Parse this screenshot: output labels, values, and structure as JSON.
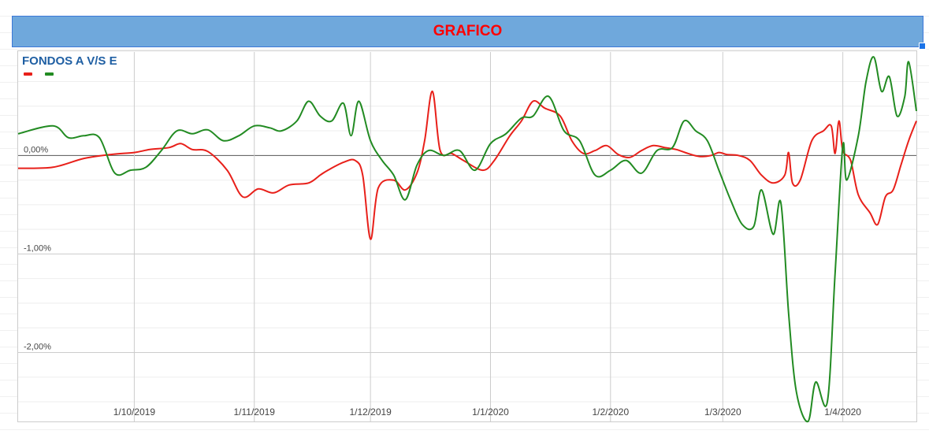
{
  "header": {
    "title": "GRAFICO"
  },
  "chart_data": {
    "type": "line",
    "title": "FONDOS A V/S E",
    "ylim": [
      -2.7,
      1.05
    ],
    "y_ticks": [
      0,
      -1,
      -2
    ],
    "y_tick_labels": [
      "0,00%",
      "-1,00%",
      "-2,00%"
    ],
    "x_range": [
      "2019-09-01",
      "2020-04-20"
    ],
    "x_ticks": [
      "2019-10-01",
      "2019-11-01",
      "2019-12-01",
      "2020-01-01",
      "2020-02-01",
      "2020-03-01",
      "2020-04-01"
    ],
    "x_tick_labels": [
      "1/10/2019",
      "1/11/2019",
      "1/12/2019",
      "1/1/2020",
      "1/2/2020",
      "1/3/2020",
      "1/4/2020"
    ],
    "grid": true,
    "legend_position": "top-left",
    "series": [
      {
        "color": "#e8201a",
        "points": [
          [
            "2019-09-01",
            -0.13
          ],
          [
            "2019-09-10",
            -0.12
          ],
          [
            "2019-09-18",
            -0.03
          ],
          [
            "2019-09-25",
            0.01
          ],
          [
            "2019-10-01",
            0.03
          ],
          [
            "2019-10-05",
            0.06
          ],
          [
            "2019-10-10",
            0.08
          ],
          [
            "2019-10-13",
            0.12
          ],
          [
            "2019-10-16",
            0.06
          ],
          [
            "2019-10-20",
            0.04
          ],
          [
            "2019-10-25",
            -0.15
          ],
          [
            "2019-10-29",
            -0.42
          ],
          [
            "2019-11-02",
            -0.34
          ],
          [
            "2019-11-06",
            -0.38
          ],
          [
            "2019-11-10",
            -0.3
          ],
          [
            "2019-11-15",
            -0.28
          ],
          [
            "2019-11-18",
            -0.2
          ],
          [
            "2019-11-20",
            -0.15
          ],
          [
            "2019-11-24",
            -0.07
          ],
          [
            "2019-11-27",
            -0.05
          ],
          [
            "2019-11-29",
            -0.2
          ],
          [
            "2019-12-01",
            -0.85
          ],
          [
            "2019-12-03",
            -0.33
          ],
          [
            "2019-12-07",
            -0.25
          ],
          [
            "2019-12-10",
            -0.35
          ],
          [
            "2019-12-13",
            -0.18
          ],
          [
            "2019-12-15",
            0.15
          ],
          [
            "2019-12-17",
            0.65
          ],
          [
            "2019-12-19",
            0.05
          ],
          [
            "2019-12-22",
            0.02
          ],
          [
            "2019-12-25",
            -0.05
          ],
          [
            "2019-12-30",
            -0.15
          ],
          [
            "2020-01-02",
            -0.05
          ],
          [
            "2020-01-06",
            0.2
          ],
          [
            "2020-01-09",
            0.35
          ],
          [
            "2020-01-12",
            0.55
          ],
          [
            "2020-01-15",
            0.48
          ],
          [
            "2020-01-19",
            0.4
          ],
          [
            "2020-01-22",
            0.15
          ],
          [
            "2020-01-25",
            0.02
          ],
          [
            "2020-01-28",
            0.05
          ],
          [
            "2020-01-31",
            0.1
          ],
          [
            "2020-02-03",
            0.01
          ],
          [
            "2020-02-06",
            -0.02
          ],
          [
            "2020-02-09",
            0.05
          ],
          [
            "2020-02-12",
            0.1
          ],
          [
            "2020-02-15",
            0.08
          ],
          [
            "2020-02-18",
            0.06
          ],
          [
            "2020-02-21",
            0.02
          ],
          [
            "2020-02-24",
            -0.01
          ],
          [
            "2020-02-27",
            0.0
          ],
          [
            "2020-02-29",
            0.03
          ],
          [
            "2020-03-02",
            0.01
          ],
          [
            "2020-03-05",
            0.0
          ],
          [
            "2020-03-08",
            -0.05
          ],
          [
            "2020-03-11",
            -0.2
          ],
          [
            "2020-03-14",
            -0.28
          ],
          [
            "2020-03-17",
            -0.2
          ],
          [
            "2020-03-18",
            0.03
          ],
          [
            "2020-03-19",
            -0.28
          ],
          [
            "2020-03-21",
            -0.25
          ],
          [
            "2020-03-24",
            0.15
          ],
          [
            "2020-03-27",
            0.25
          ],
          [
            "2020-03-29",
            0.3
          ],
          [
            "2020-03-30",
            0.02
          ],
          [
            "2020-03-31",
            0.35
          ],
          [
            "2020-04-01",
            0.05
          ],
          [
            "2020-04-03",
            -0.05
          ],
          [
            "2020-04-05",
            -0.4
          ],
          [
            "2020-04-08",
            -0.58
          ],
          [
            "2020-04-10",
            -0.7
          ],
          [
            "2020-04-12",
            -0.42
          ],
          [
            "2020-04-14",
            -0.35
          ],
          [
            "2020-04-16",
            -0.1
          ],
          [
            "2020-04-18",
            0.15
          ],
          [
            "2020-04-20",
            0.35
          ]
        ]
      },
      {
        "color": "#228b22",
        "points": [
          [
            "2019-09-01",
            0.22
          ],
          [
            "2019-09-10",
            0.3
          ],
          [
            "2019-09-14",
            0.18
          ],
          [
            "2019-09-18",
            0.2
          ],
          [
            "2019-09-22",
            0.18
          ],
          [
            "2019-09-26",
            -0.18
          ],
          [
            "2019-09-30",
            -0.15
          ],
          [
            "2019-10-04",
            -0.12
          ],
          [
            "2019-10-08",
            0.05
          ],
          [
            "2019-10-12",
            0.25
          ],
          [
            "2019-10-16",
            0.22
          ],
          [
            "2019-10-20",
            0.26
          ],
          [
            "2019-10-24",
            0.15
          ],
          [
            "2019-10-28",
            0.2
          ],
          [
            "2019-11-01",
            0.3
          ],
          [
            "2019-11-05",
            0.28
          ],
          [
            "2019-11-08",
            0.25
          ],
          [
            "2019-11-12",
            0.35
          ],
          [
            "2019-11-15",
            0.55
          ],
          [
            "2019-11-18",
            0.4
          ],
          [
            "2019-11-21",
            0.35
          ],
          [
            "2019-11-24",
            0.53
          ],
          [
            "2019-11-26",
            0.2
          ],
          [
            "2019-11-28",
            0.55
          ],
          [
            "2019-12-01",
            0.15
          ],
          [
            "2019-12-04",
            -0.05
          ],
          [
            "2019-12-07",
            -0.2
          ],
          [
            "2019-12-10",
            -0.45
          ],
          [
            "2019-12-13",
            -0.1
          ],
          [
            "2019-12-16",
            0.05
          ],
          [
            "2019-12-20",
            0.0
          ],
          [
            "2019-12-24",
            0.05
          ],
          [
            "2019-12-28",
            -0.15
          ],
          [
            "2020-01-01",
            0.12
          ],
          [
            "2020-01-05",
            0.22
          ],
          [
            "2020-01-09",
            0.38
          ],
          [
            "2020-01-12",
            0.4
          ],
          [
            "2020-01-16",
            0.6
          ],
          [
            "2020-01-20",
            0.25
          ],
          [
            "2020-01-24",
            0.15
          ],
          [
            "2020-01-28",
            -0.2
          ],
          [
            "2020-02-01",
            -0.15
          ],
          [
            "2020-02-05",
            -0.05
          ],
          [
            "2020-02-09",
            -0.18
          ],
          [
            "2020-02-13",
            0.05
          ],
          [
            "2020-02-17",
            0.08
          ],
          [
            "2020-02-20",
            0.35
          ],
          [
            "2020-02-23",
            0.25
          ],
          [
            "2020-02-26",
            0.15
          ],
          [
            "2020-02-29",
            -0.15
          ],
          [
            "2020-03-03",
            -0.45
          ],
          [
            "2020-03-06",
            -0.7
          ],
          [
            "2020-03-09",
            -0.72
          ],
          [
            "2020-03-11",
            -0.35
          ],
          [
            "2020-03-14",
            -0.8
          ],
          [
            "2020-03-16",
            -0.48
          ],
          [
            "2020-03-18",
            -1.6
          ],
          [
            "2020-03-20",
            -2.4
          ],
          [
            "2020-03-23",
            -2.7
          ],
          [
            "2020-03-25",
            -2.3
          ],
          [
            "2020-03-28",
            -2.5
          ],
          [
            "2020-03-30",
            -1.2
          ],
          [
            "2020-04-01",
            0.1
          ],
          [
            "2020-04-02",
            -0.25
          ],
          [
            "2020-04-05",
            0.2
          ],
          [
            "2020-04-07",
            0.75
          ],
          [
            "2020-04-09",
            1.0
          ],
          [
            "2020-04-11",
            0.65
          ],
          [
            "2020-04-13",
            0.8
          ],
          [
            "2020-04-15",
            0.4
          ],
          [
            "2020-04-17",
            0.6
          ],
          [
            "2020-04-18",
            0.95
          ],
          [
            "2020-04-20",
            0.45
          ]
        ]
      }
    ]
  }
}
